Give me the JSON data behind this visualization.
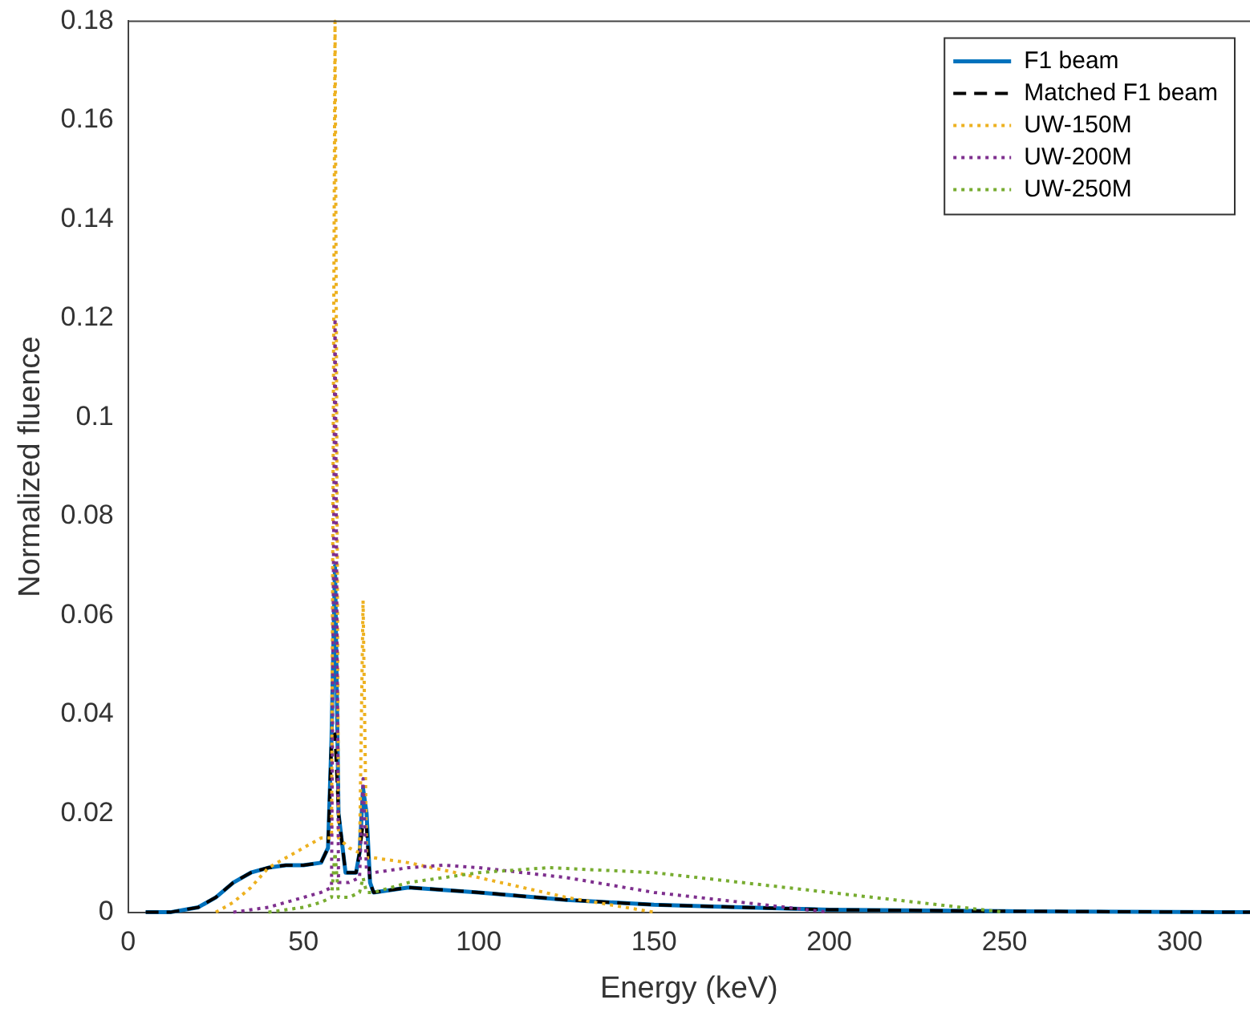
{
  "chart_data": {
    "type": "line",
    "xlabel": "Energy (keV)",
    "ylabel": "Normalized fluence",
    "xlim": [
      0,
      320
    ],
    "ylim": [
      0,
      0.18
    ],
    "xticks": [
      0,
      50,
      100,
      150,
      200,
      250,
      300
    ],
    "yticks": [
      0,
      0.02,
      0.04,
      0.06,
      0.08,
      0.1,
      0.12,
      0.14,
      0.16,
      0.18
    ],
    "grid": false,
    "legend": "top right",
    "marker": "none",
    "series": [
      {
        "name": "F1 beam",
        "color": "#0072bd",
        "line_style": "solid",
        "x": [
          5,
          12,
          20,
          25,
          30,
          35,
          40,
          45,
          50,
          55,
          57,
          58,
          59,
          60,
          62,
          65,
          66,
          67,
          68,
          69,
          70,
          80,
          100,
          125,
          150,
          175,
          200,
          250,
          320
        ],
        "values": [
          0,
          0,
          0.001,
          0.003,
          0.006,
          0.008,
          0.009,
          0.0095,
          0.0095,
          0.01,
          0.013,
          0.035,
          0.07,
          0.02,
          0.008,
          0.008,
          0.012,
          0.025,
          0.02,
          0.006,
          0.004,
          0.005,
          0.004,
          0.0025,
          0.0015,
          0.001,
          0.0005,
          0.0002,
          0
        ]
      },
      {
        "name": "Matched F1 beam",
        "color": "#000000",
        "line_style": "dashed",
        "x": [
          5,
          12,
          20,
          25,
          30,
          35,
          40,
          45,
          50,
          55,
          57,
          58,
          59,
          60,
          62,
          65,
          66,
          67,
          68,
          69,
          70,
          80,
          100,
          125,
          150,
          175,
          200,
          250,
          320
        ],
        "values": [
          0,
          0,
          0.001,
          0.003,
          0.006,
          0.008,
          0.009,
          0.0095,
          0.0095,
          0.01,
          0.013,
          0.035,
          0.036,
          0.02,
          0.008,
          0.008,
          0.012,
          0.018,
          0.017,
          0.006,
          0.004,
          0.005,
          0.004,
          0.0025,
          0.0015,
          0.001,
          0.0005,
          0.0002,
          0
        ]
      },
      {
        "name": "UW-150M",
        "color": "#edb120",
        "line_style": "dotted",
        "x": [
          25,
          30,
          35,
          40,
          45,
          50,
          55,
          58,
          59,
          60,
          63,
          66,
          67,
          68,
          70,
          80,
          100,
          125,
          150
        ],
        "values": [
          0,
          0.002,
          0.005,
          0.009,
          0.011,
          0.013,
          0.015,
          0.015,
          0.18,
          0.015,
          0.013,
          0.012,
          0.063,
          0.011,
          0.011,
          0.01,
          0.007,
          0.003,
          0
        ]
      },
      {
        "name": "UW-200M",
        "color": "#7e2f8e",
        "line_style": "dotted",
        "x": [
          30,
          40,
          50,
          55,
          58,
          59,
          60,
          63,
          66,
          67,
          68,
          70,
          80,
          90,
          100,
          125,
          150,
          175,
          200
        ],
        "values": [
          0,
          0.001,
          0.003,
          0.004,
          0.005,
          0.12,
          0.006,
          0.006,
          0.007,
          0.027,
          0.008,
          0.008,
          0.009,
          0.0095,
          0.009,
          0.007,
          0.004,
          0.002,
          0
        ]
      },
      {
        "name": "UW-250M",
        "color": "#77ac30",
        "line_style": "dotted",
        "x": [
          40,
          50,
          55,
          58,
          59,
          60,
          63,
          66,
          67,
          68,
          70,
          80,
          100,
          120,
          150,
          175,
          200,
          225,
          250
        ],
        "values": [
          0,
          0.001,
          0.002,
          0.003,
          0.012,
          0.003,
          0.003,
          0.004,
          0.007,
          0.004,
          0.004,
          0.006,
          0.008,
          0.009,
          0.008,
          0.006,
          0.004,
          0.002,
          0
        ]
      }
    ]
  }
}
